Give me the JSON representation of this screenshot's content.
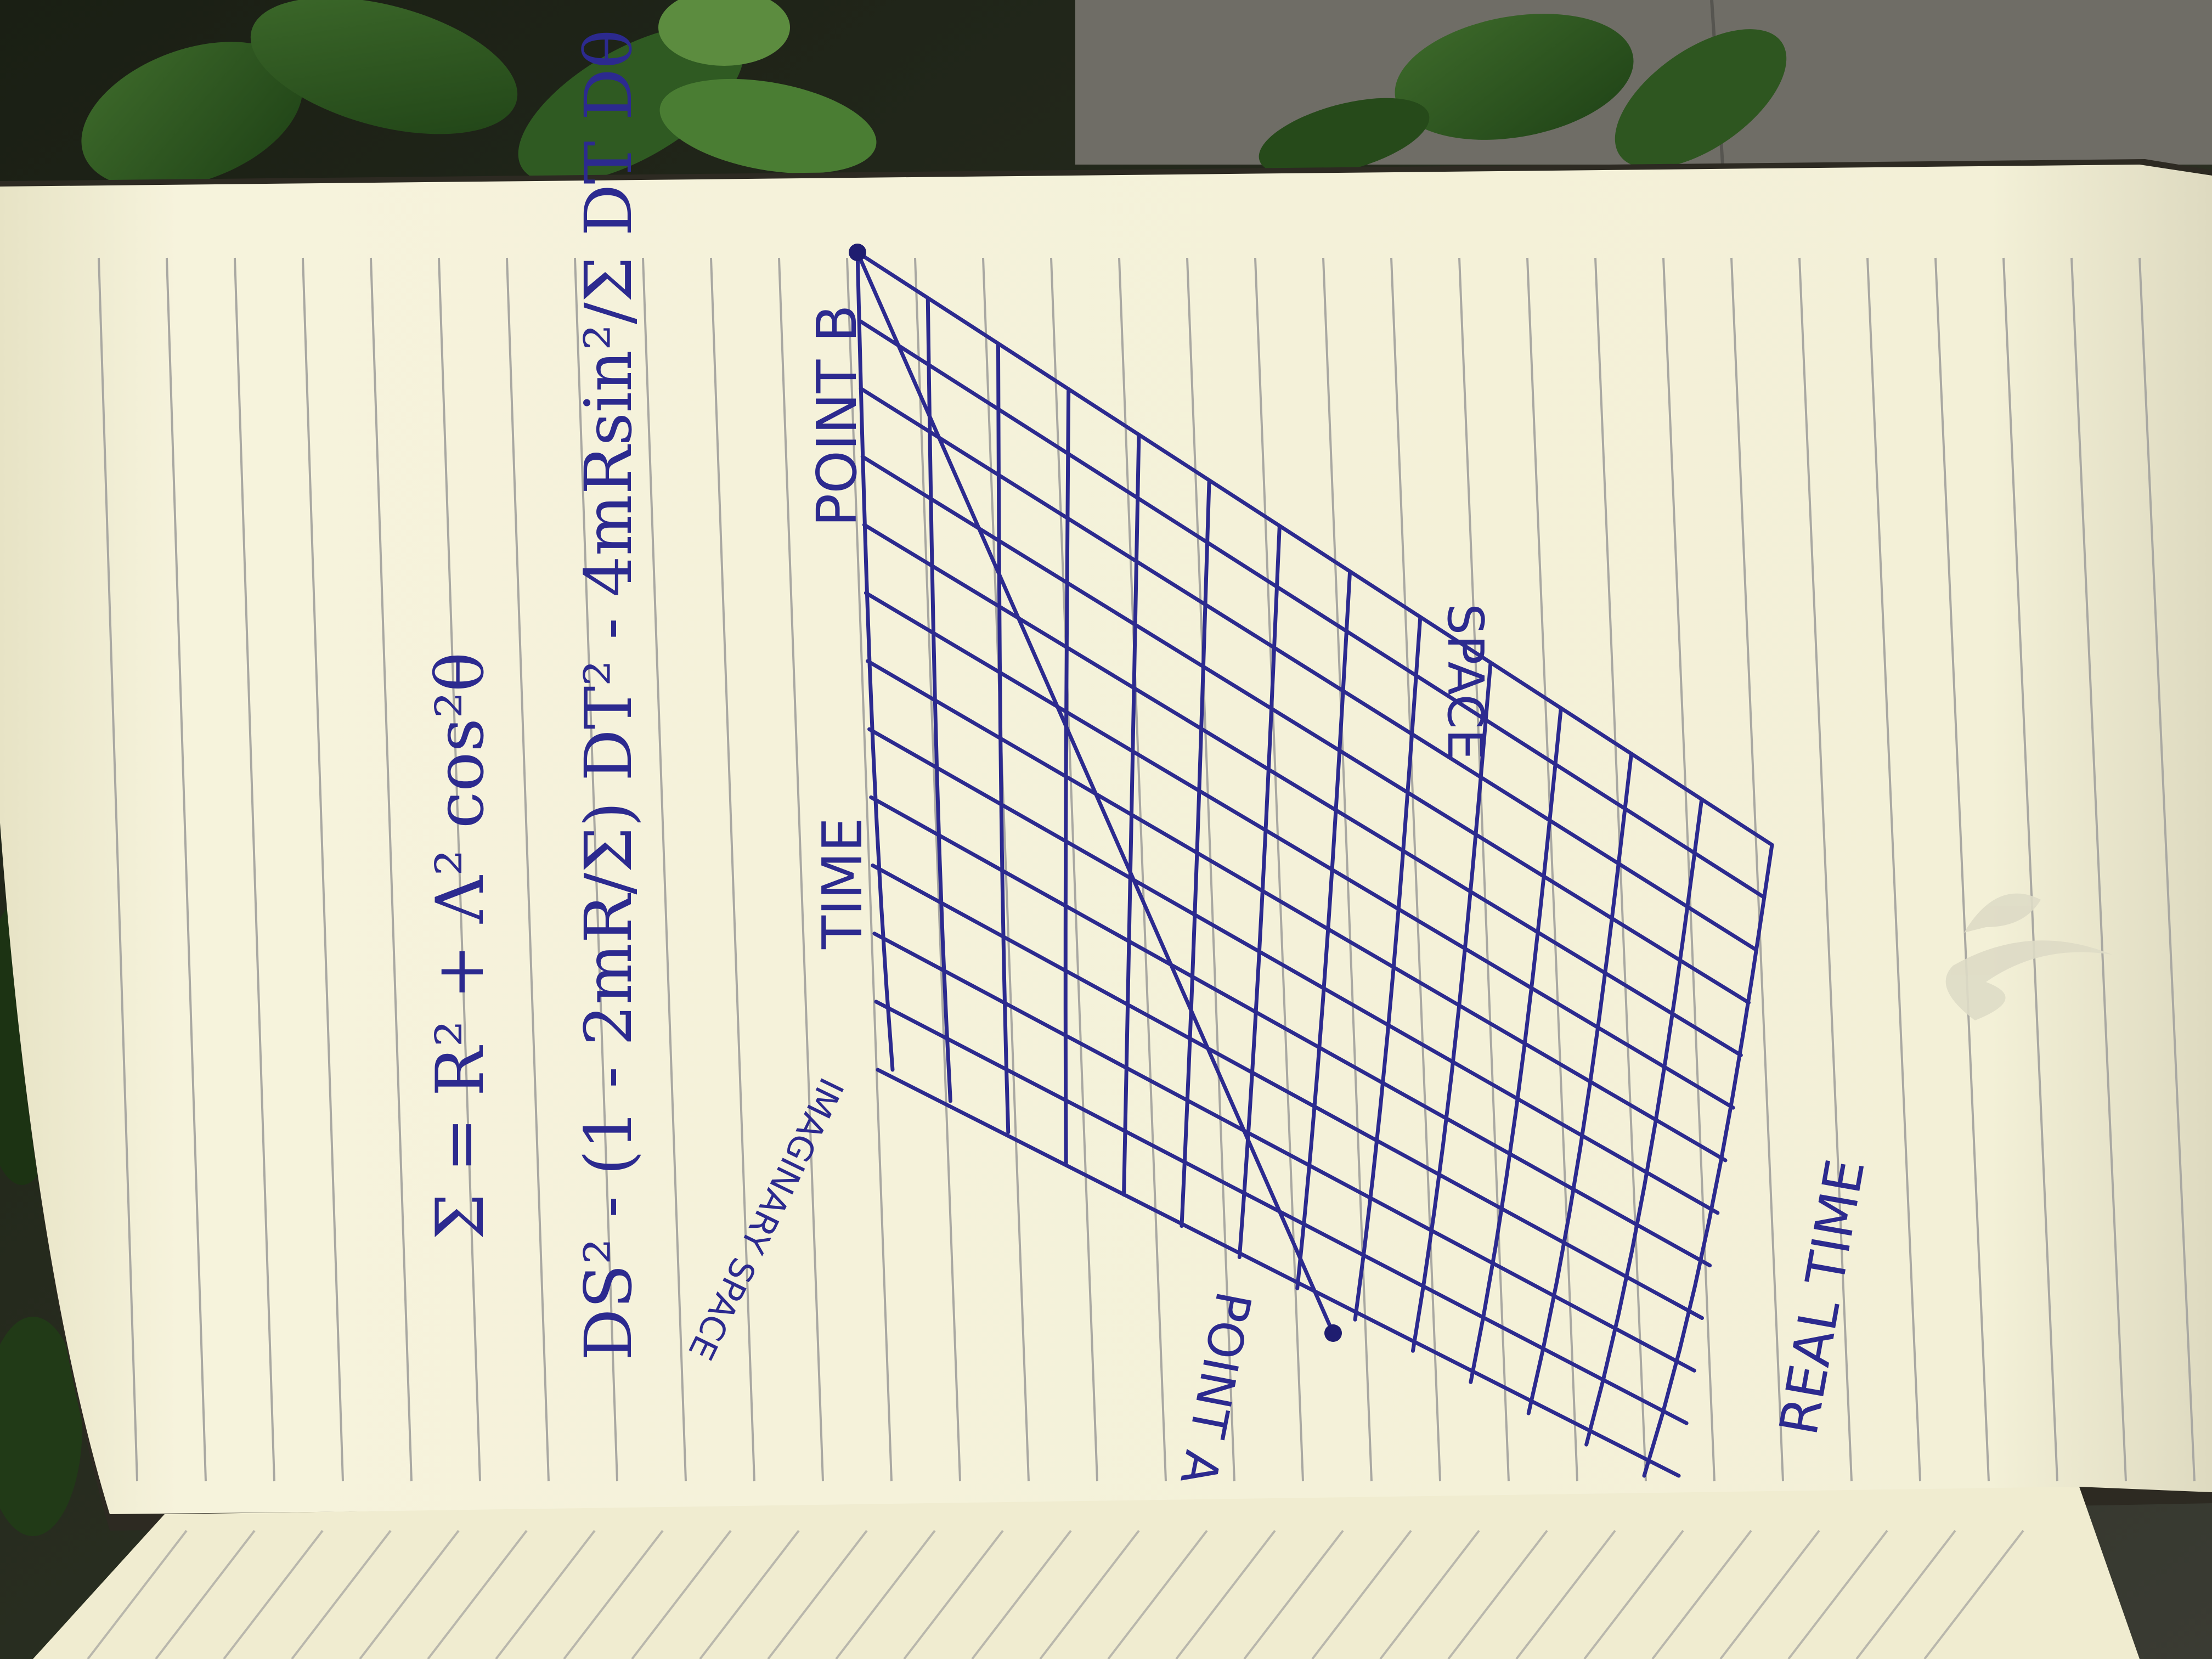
{
  "photo": {
    "subject": "open lined notebook with handwritten equations and a spacetime grid drawing",
    "page_color": "#f6f3dc",
    "ink_color": "#2c2a8f"
  },
  "equations": {
    "eq1": "Σ = R² + Λ² cos²θ",
    "eq2": "DS² - (1 - 2mR/Σ) DT² - 4mRsin²/Σ DT Dθ"
  },
  "diagram": {
    "point_b": "POINT B",
    "point_a": "POINT A",
    "time": "TIME",
    "space": "SPACE",
    "imaginary_space": "IMAGINARY SPACE",
    "real_time": "REAL TIME"
  }
}
